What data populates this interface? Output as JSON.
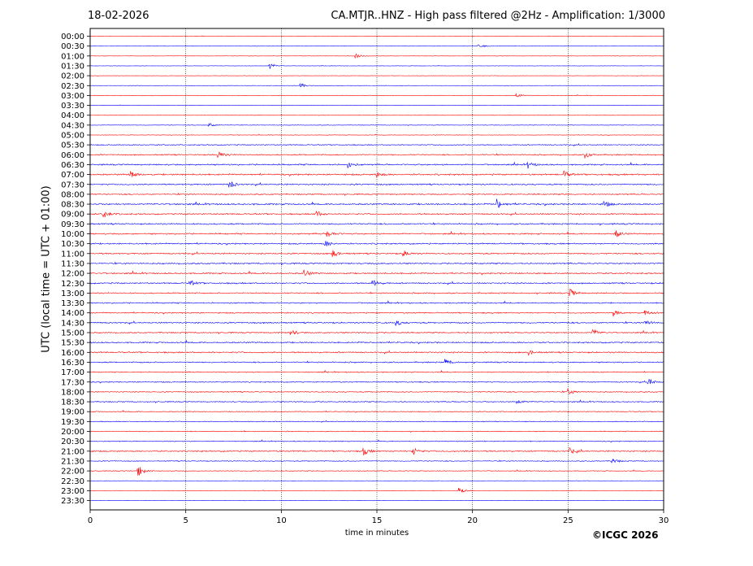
{
  "header": {
    "date": "18-02-2026",
    "title": "CA.MTJR..HNZ - High pass filtered @2Hz - Amplification: 1/3000"
  },
  "footer": {
    "credit": "©ICGC 2026"
  },
  "chart_data": {
    "type": "line",
    "xlabel": "time in minutes",
    "ylabel": "UTC (local time = UTC + 01:00)",
    "xlim": [
      0,
      30
    ],
    "xticks": [
      0,
      5,
      10,
      15,
      20,
      25,
      30
    ],
    "grid": "vertical dotted lines at 5, 10, 15, 20, 25 minutes",
    "series_colors": [
      "#ff0000",
      "#0000ff"
    ],
    "row_labels": [
      "00:00",
      "00:30",
      "01:00",
      "01:30",
      "02:00",
      "02:30",
      "03:00",
      "03:30",
      "04:00",
      "04:30",
      "05:00",
      "05:30",
      "06:00",
      "06:30",
      "07:00",
      "07:30",
      "08:00",
      "08:30",
      "09:00",
      "09:30",
      "10:00",
      "10:30",
      "11:00",
      "11:30",
      "12:00",
      "12:30",
      "13:00",
      "13:30",
      "14:00",
      "14:30",
      "15:00",
      "15:30",
      "16:00",
      "16:30",
      "17:00",
      "17:30",
      "18:00",
      "18:30",
      "19:00",
      "19:30",
      "20:00",
      "20:30",
      "21:00",
      "21:30",
      "22:00",
      "22:30",
      "23:00",
      "23:30"
    ],
    "row_colors": [
      "red",
      "blue",
      "red",
      "blue",
      "red",
      "blue",
      "red",
      "blue",
      "red",
      "blue",
      "red",
      "blue",
      "red",
      "blue",
      "red",
      "blue",
      "red",
      "blue",
      "red",
      "blue",
      "red",
      "blue",
      "red",
      "blue",
      "red",
      "blue",
      "red",
      "blue",
      "red",
      "blue",
      "red",
      "blue",
      "red",
      "blue",
      "red",
      "blue",
      "red",
      "blue",
      "red",
      "blue",
      "red",
      "blue",
      "red",
      "blue",
      "red",
      "blue",
      "red",
      "blue"
    ],
    "noise_level": [
      0.2,
      0.2,
      0.2,
      0.2,
      0.2,
      0.2,
      0.3,
      0.2,
      0.2,
      0.3,
      0.3,
      0.6,
      0.7,
      0.8,
      0.9,
      0.8,
      0.7,
      0.9,
      0.8,
      0.8,
      0.8,
      0.8,
      0.8,
      0.8,
      0.8,
      0.8,
      0.7,
      0.7,
      0.7,
      0.8,
      0.7,
      0.8,
      0.8,
      0.7,
      0.6,
      0.6,
      0.6,
      0.6,
      0.5,
      0.5,
      0.5,
      0.5,
      0.8,
      0.5,
      0.4,
      0.2,
      0.3,
      0.2
    ],
    "events": [
      {
        "row": "00:30",
        "minute": 20.3,
        "amp": 3
      },
      {
        "row": "01:00",
        "minute": 13.9,
        "amp": 3
      },
      {
        "row": "01:30",
        "minute": 9.4,
        "amp": 4
      },
      {
        "row": "02:30",
        "minute": 11.0,
        "amp": 4
      },
      {
        "row": "03:00",
        "minute": 22.3,
        "amp": 3
      },
      {
        "row": "04:30",
        "minute": 6.2,
        "amp": 3
      },
      {
        "row": "06:00",
        "minute": 6.7,
        "amp": 5
      },
      {
        "row": "06:00",
        "minute": 25.9,
        "amp": 4
      },
      {
        "row": "06:30",
        "minute": 13.5,
        "amp": 4
      },
      {
        "row": "06:30",
        "minute": 22.9,
        "amp": 4
      },
      {
        "row": "07:00",
        "minute": 2.1,
        "amp": 5
      },
      {
        "row": "07:00",
        "minute": 15.0,
        "amp": 4
      },
      {
        "row": "07:00",
        "minute": 24.8,
        "amp": 4
      },
      {
        "row": "07:30",
        "minute": 7.3,
        "amp": 5
      },
      {
        "row": "08:30",
        "minute": 21.3,
        "amp": 6
      },
      {
        "row": "08:30",
        "minute": 26.9,
        "amp": 4
      },
      {
        "row": "09:00",
        "minute": 0.7,
        "amp": 6
      },
      {
        "row": "09:00",
        "minute": 11.8,
        "amp": 5
      },
      {
        "row": "10:00",
        "minute": 12.4,
        "amp": 5
      },
      {
        "row": "10:00",
        "minute": 27.5,
        "amp": 5
      },
      {
        "row": "10:30",
        "minute": 12.3,
        "amp": 4
      },
      {
        "row": "11:00",
        "minute": 12.7,
        "amp": 5
      },
      {
        "row": "11:00",
        "minute": 16.4,
        "amp": 4
      },
      {
        "row": "12:00",
        "minute": 11.2,
        "amp": 5
      },
      {
        "row": "12:30",
        "minute": 5.2,
        "amp": 4
      },
      {
        "row": "12:30",
        "minute": 14.8,
        "amp": 4
      },
      {
        "row": "13:00",
        "minute": 25.1,
        "amp": 5
      },
      {
        "row": "14:00",
        "minute": 27.4,
        "amp": 4
      },
      {
        "row": "14:00",
        "minute": 29.0,
        "amp": 4
      },
      {
        "row": "14:30",
        "minute": 16.0,
        "amp": 4
      },
      {
        "row": "14:30",
        "minute": 29.0,
        "amp": 4
      },
      {
        "row": "15:00",
        "minute": 10.5,
        "amp": 4
      },
      {
        "row": "15:00",
        "minute": 26.3,
        "amp": 5
      },
      {
        "row": "16:00",
        "minute": 22.9,
        "amp": 4
      },
      {
        "row": "16:30",
        "minute": 18.6,
        "amp": 4
      },
      {
        "row": "17:30",
        "minute": 29.2,
        "amp": 5
      },
      {
        "row": "18:00",
        "minute": 25.0,
        "amp": 4
      },
      {
        "row": "18:30",
        "minute": 22.3,
        "amp": 4
      },
      {
        "row": "21:00",
        "minute": 14.3,
        "amp": 5
      },
      {
        "row": "21:00",
        "minute": 16.9,
        "amp": 5
      },
      {
        "row": "21:00",
        "minute": 25.1,
        "amp": 4
      },
      {
        "row": "21:30",
        "minute": 27.3,
        "amp": 4
      },
      {
        "row": "22:00",
        "minute": 2.5,
        "amp": 8
      },
      {
        "row": "23:00",
        "minute": 19.3,
        "amp": 4
      }
    ]
  }
}
